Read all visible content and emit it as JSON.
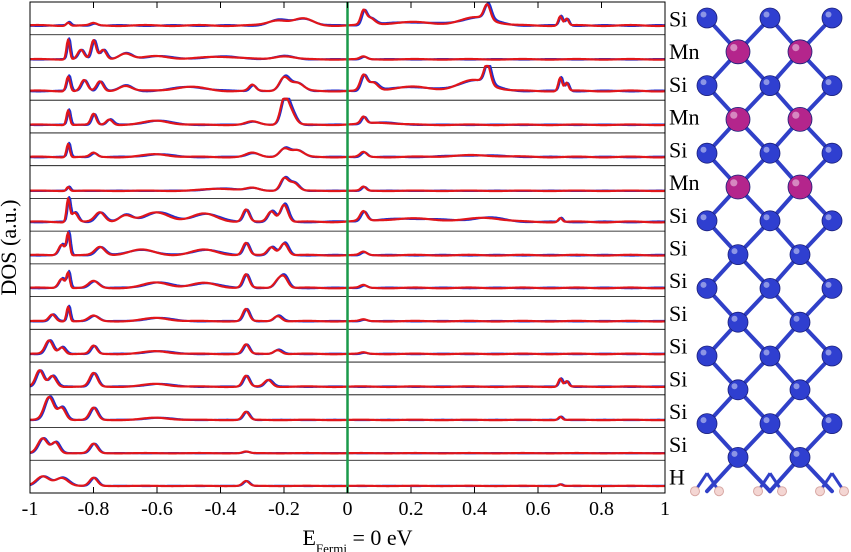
{
  "chart_data": {
    "type": "line",
    "title": "",
    "xlabel_main": "E",
    "xlabel_sub": "Fermi",
    "xlabel_rest": " = 0 eV",
    "ylabel": "DOS (a.u.)",
    "xlim": [
      -1,
      1
    ],
    "x_ticks": [
      -1,
      -0.8,
      -0.6,
      -0.4,
      -0.2,
      0,
      0.2,
      0.4,
      0.6,
      0.8,
      1
    ],
    "x_tick_labels": [
      "-1",
      "-0.8",
      "-0.6",
      "-0.4",
      "-0.2",
      "0",
      "0.2",
      "0.4",
      "0.6",
      "0.8",
      "1"
    ],
    "fermi_level": 0,
    "grid": false,
    "colors": {
      "spin_a": "#1f2fcf",
      "spin_b": "#e0161b",
      "fermi": "#1a9a4a",
      "si_atom": "#2f3fd0",
      "mn_atom": "#b4258c",
      "h_atom": "#f4d6d3"
    },
    "layer_labels": [
      "Si",
      "Mn",
      "Si",
      "Mn",
      "Si",
      "Mn",
      "Si",
      "Si",
      "Si",
      "Si",
      "Si",
      "Si",
      "Si",
      "Si",
      "H"
    ],
    "panels": [
      {
        "label": "Si",
        "baseline": 0.12,
        "peaks": [
          [
            -0.88,
            0.12,
            0.006
          ],
          [
            -0.8,
            0.08,
            0.01
          ],
          [
            -0.22,
            0.2,
            0.03
          ],
          [
            -0.14,
            0.25,
            0.03
          ],
          [
            0.05,
            0.45,
            0.008
          ],
          [
            0.07,
            0.25,
            0.015
          ],
          [
            0.2,
            0.12,
            0.08
          ],
          [
            0.44,
            0.55,
            0.01
          ],
          [
            0.41,
            0.3,
            0.05
          ],
          [
            0.67,
            0.35,
            0.006
          ],
          [
            0.69,
            0.25,
            0.006
          ]
        ]
      },
      {
        "label": "Mn",
        "baseline": 0.08,
        "peaks": [
          [
            -0.88,
            0.75,
            0.005
          ],
          [
            -0.84,
            0.35,
            0.01
          ],
          [
            -0.8,
            0.7,
            0.008
          ],
          [
            -0.77,
            0.35,
            0.01
          ],
          [
            -0.7,
            0.22,
            0.02
          ],
          [
            -0.6,
            0.12,
            0.04
          ],
          [
            -0.4,
            0.1,
            0.06
          ],
          [
            -0.2,
            0.12,
            0.03
          ],
          [
            0.05,
            0.1,
            0.01
          ]
        ]
      },
      {
        "label": "Si",
        "baseline": 0.12,
        "peaks": [
          [
            -0.88,
            0.55,
            0.006
          ],
          [
            -0.83,
            0.4,
            0.01
          ],
          [
            -0.78,
            0.35,
            0.01
          ],
          [
            -0.7,
            0.2,
            0.02
          ],
          [
            -0.5,
            0.15,
            0.05
          ],
          [
            -0.3,
            0.22,
            0.01
          ],
          [
            -0.2,
            0.5,
            0.015
          ],
          [
            -0.16,
            0.3,
            0.02
          ],
          [
            0.05,
            0.55,
            0.01
          ],
          [
            0.08,
            0.3,
            0.015
          ],
          [
            0.2,
            0.15,
            0.06
          ],
          [
            0.44,
            0.75,
            0.01
          ],
          [
            0.4,
            0.4,
            0.05
          ],
          [
            0.67,
            0.5,
            0.006
          ],
          [
            0.69,
            0.3,
            0.006
          ]
        ]
      },
      {
        "label": "Mn",
        "baseline": 0.08,
        "peaks": [
          [
            -0.88,
            0.55,
            0.005
          ],
          [
            -0.8,
            0.4,
            0.008
          ],
          [
            -0.75,
            0.2,
            0.01
          ],
          [
            -0.6,
            0.15,
            0.04
          ],
          [
            -0.3,
            0.12,
            0.02
          ],
          [
            -0.2,
            0.85,
            0.012
          ],
          [
            -0.18,
            0.5,
            0.015
          ],
          [
            0.05,
            0.25,
            0.008
          ],
          [
            0.1,
            0.08,
            0.05
          ]
        ]
      },
      {
        "label": "Si",
        "baseline": 0.1,
        "peaks": [
          [
            -0.88,
            0.5,
            0.005
          ],
          [
            -0.8,
            0.15,
            0.01
          ],
          [
            -0.6,
            0.1,
            0.04
          ],
          [
            -0.3,
            0.15,
            0.02
          ],
          [
            -0.2,
            0.3,
            0.015
          ],
          [
            -0.16,
            0.25,
            0.02
          ],
          [
            0.05,
            0.18,
            0.01
          ],
          [
            0.4,
            0.06,
            0.08
          ]
        ]
      },
      {
        "label": "Mn",
        "baseline": 0.06,
        "peaks": [
          [
            -0.88,
            0.15,
            0.005
          ],
          [
            -0.4,
            0.08,
            0.05
          ],
          [
            -0.3,
            0.1,
            0.02
          ],
          [
            -0.2,
            0.45,
            0.012
          ],
          [
            -0.17,
            0.3,
            0.015
          ],
          [
            0.05,
            0.15,
            0.008
          ]
        ]
      },
      {
        "label": "Si",
        "baseline": 0.12,
        "peaks": [
          [
            -0.88,
            0.85,
            0.005
          ],
          [
            -0.86,
            0.35,
            0.01
          ],
          [
            -0.78,
            0.35,
            0.015
          ],
          [
            -0.7,
            0.25,
            0.02
          ],
          [
            -0.6,
            0.35,
            0.04
          ],
          [
            -0.45,
            0.3,
            0.04
          ],
          [
            -0.32,
            0.45,
            0.01
          ],
          [
            -0.24,
            0.4,
            0.012
          ],
          [
            -0.2,
            0.65,
            0.012
          ],
          [
            0.05,
            0.35,
            0.01
          ],
          [
            0.2,
            0.12,
            0.1
          ],
          [
            0.44,
            0.15,
            0.05
          ],
          [
            0.67,
            0.15,
            0.006
          ]
        ]
      },
      {
        "label": "Si",
        "baseline": 0.1,
        "peaks": [
          [
            -0.88,
            0.8,
            0.005
          ],
          [
            -0.9,
            0.4,
            0.01
          ],
          [
            -0.78,
            0.3,
            0.015
          ],
          [
            -0.65,
            0.2,
            0.04
          ],
          [
            -0.45,
            0.2,
            0.04
          ],
          [
            -0.32,
            0.45,
            0.01
          ],
          [
            -0.24,
            0.3,
            0.012
          ],
          [
            -0.2,
            0.45,
            0.012
          ],
          [
            0.05,
            0.12,
            0.01
          ]
        ]
      },
      {
        "label": "Si",
        "baseline": 0.1,
        "peaks": [
          [
            -0.88,
            0.55,
            0.005
          ],
          [
            -0.9,
            0.35,
            0.01
          ],
          [
            -0.8,
            0.25,
            0.015
          ],
          [
            -0.6,
            0.2,
            0.04
          ],
          [
            -0.45,
            0.18,
            0.04
          ],
          [
            -0.32,
            0.5,
            0.01
          ],
          [
            -0.22,
            0.25,
            0.012
          ],
          [
            -0.2,
            0.4,
            0.012
          ],
          [
            0.05,
            0.1,
            0.01
          ]
        ]
      },
      {
        "label": "Si",
        "baseline": 0.08,
        "peaks": [
          [
            -0.88,
            0.55,
            0.005
          ],
          [
            -0.93,
            0.25,
            0.01
          ],
          [
            -0.8,
            0.2,
            0.015
          ],
          [
            -0.6,
            0.12,
            0.04
          ],
          [
            -0.32,
            0.45,
            0.01
          ],
          [
            -0.22,
            0.2,
            0.012
          ],
          [
            0.05,
            0.06,
            0.01
          ]
        ]
      },
      {
        "label": "Si",
        "baseline": 0.08,
        "peaks": [
          [
            -0.94,
            0.5,
            0.012
          ],
          [
            -0.9,
            0.25,
            0.01
          ],
          [
            -0.8,
            0.3,
            0.01
          ],
          [
            -0.6,
            0.1,
            0.04
          ],
          [
            -0.32,
            0.35,
            0.01
          ],
          [
            -0.22,
            0.15,
            0.012
          ],
          [
            0.05,
            0.05,
            0.01
          ]
        ]
      },
      {
        "label": "Si",
        "baseline": 0.08,
        "peaks": [
          [
            -0.97,
            0.6,
            0.012
          ],
          [
            -0.93,
            0.4,
            0.012
          ],
          [
            -0.8,
            0.5,
            0.012
          ],
          [
            -0.6,
            0.1,
            0.04
          ],
          [
            -0.32,
            0.4,
            0.01
          ],
          [
            -0.25,
            0.25,
            0.012
          ],
          [
            0.67,
            0.3,
            0.006
          ],
          [
            0.69,
            0.2,
            0.006
          ]
        ]
      },
      {
        "label": "Si",
        "baseline": 0.06,
        "peaks": [
          [
            -0.94,
            0.85,
            0.015
          ],
          [
            -0.9,
            0.45,
            0.012
          ],
          [
            -0.8,
            0.45,
            0.012
          ],
          [
            -0.6,
            0.08,
            0.04
          ],
          [
            -0.32,
            0.3,
            0.01
          ],
          [
            0.67,
            0.12,
            0.006
          ]
        ]
      },
      {
        "label": "Si",
        "baseline": 0.04,
        "peaks": [
          [
            -0.96,
            0.55,
            0.015
          ],
          [
            -0.92,
            0.4,
            0.012
          ],
          [
            -0.8,
            0.35,
            0.012
          ],
          [
            -0.32,
            0.06,
            0.01
          ]
        ]
      },
      {
        "label": "H",
        "baseline": 0.04,
        "peaks": [
          [
            -0.96,
            0.35,
            0.02
          ],
          [
            -0.9,
            0.3,
            0.02
          ],
          [
            -0.8,
            0.3,
            0.012
          ],
          [
            -0.32,
            0.18,
            0.01
          ],
          [
            0.67,
            0.06,
            0.006
          ]
        ]
      }
    ]
  },
  "structure": {
    "rows": [
      "Si",
      "Mn",
      "Si",
      "Mn",
      "Si",
      "Mn",
      "Si",
      "Si",
      "Si",
      "Si",
      "Si",
      "Si",
      "Si",
      "Si",
      "H"
    ]
  }
}
